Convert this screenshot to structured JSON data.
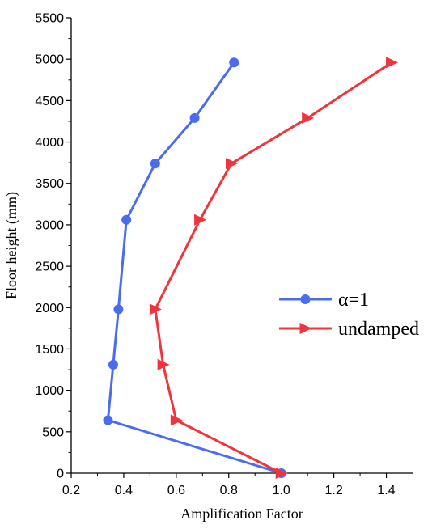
{
  "chart_data": {
    "type": "line",
    "xlabel": "Amplification Factor",
    "ylabel": "Floor height (mm)",
    "xlim": [
      0.2,
      1.5
    ],
    "ylim": [
      0,
      5500
    ],
    "xticks": [
      "0.2",
      "0.4",
      "0.6",
      "0.8",
      "1.0",
      "1.2",
      "1.4"
    ],
    "yticks": [
      "0",
      "500",
      "1000",
      "1500",
      "2000",
      "2500",
      "3000",
      "3500",
      "4000",
      "4500",
      "5000",
      "5500"
    ],
    "grid": false,
    "legend_position": "right",
    "series": [
      {
        "name": "α=1",
        "color": "#4a6cf0",
        "marker": "circle",
        "points": [
          {
            "x": 1.0,
            "y": 0
          },
          {
            "x": 0.34,
            "y": 640
          },
          {
            "x": 0.36,
            "y": 1310
          },
          {
            "x": 0.38,
            "y": 1980
          },
          {
            "x": 0.41,
            "y": 3060
          },
          {
            "x": 0.52,
            "y": 3740
          },
          {
            "x": 0.67,
            "y": 4290
          },
          {
            "x": 0.82,
            "y": 4960
          }
        ]
      },
      {
        "name": "undamped",
        "color": "#f0343c",
        "marker": "triangle-right",
        "points": [
          {
            "x": 1.0,
            "y": 0
          },
          {
            "x": 0.6,
            "y": 640
          },
          {
            "x": 0.55,
            "y": 1310
          },
          {
            "x": 0.52,
            "y": 1980
          },
          {
            "x": 0.69,
            "y": 3060
          },
          {
            "x": 0.81,
            "y": 3740
          },
          {
            "x": 1.1,
            "y": 4290
          },
          {
            "x": 1.42,
            "y": 4960
          }
        ]
      }
    ]
  }
}
